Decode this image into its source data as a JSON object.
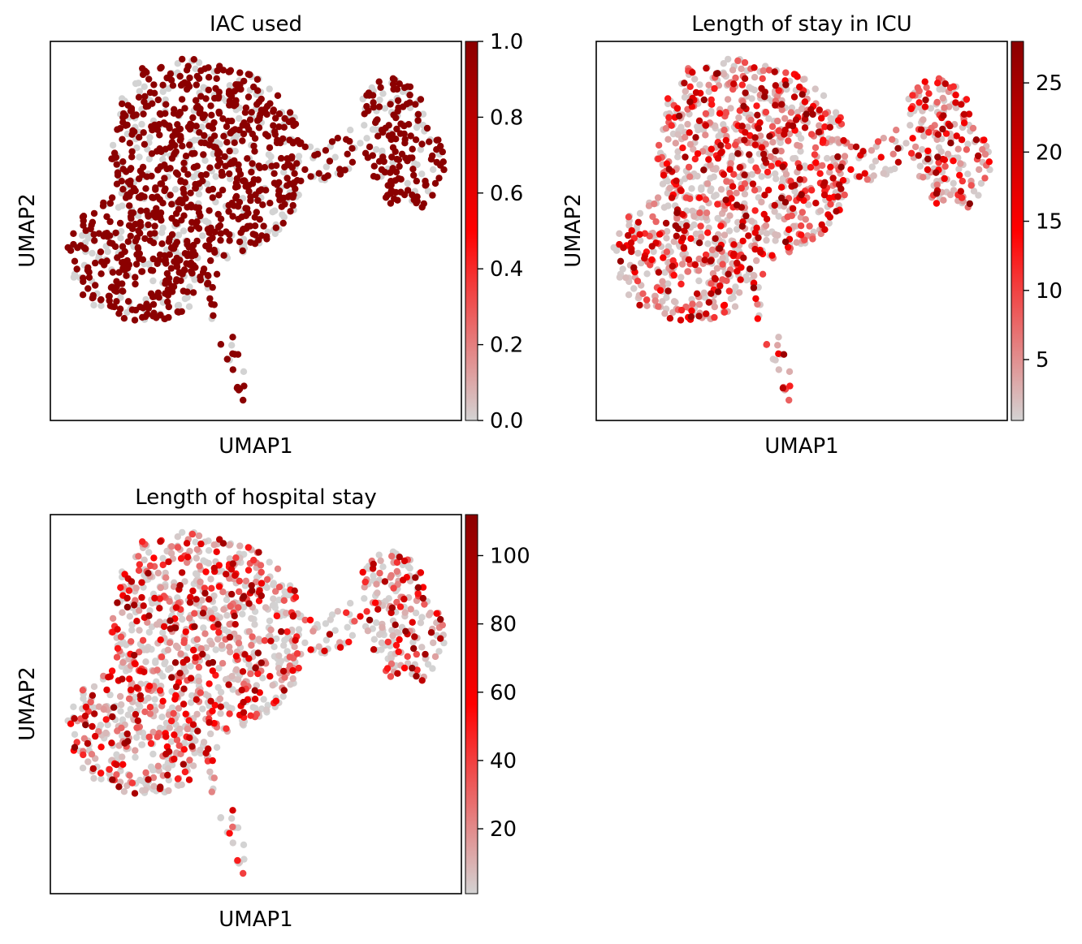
{
  "colors": {
    "low": "#d3d3d3",
    "mid": "#ff0000",
    "high": "#8b0000",
    "frame": "#000000"
  },
  "chart_data": [
    {
      "type": "scatter",
      "title": "IAC used",
      "xlabel": "UMAP1",
      "ylabel": "UMAP2",
      "color_scale": {
        "min": 0.0,
        "max": 1.0,
        "ticks": [
          "0.0",
          "0.2",
          "0.4",
          "0.6",
          "0.8",
          "1.0"
        ],
        "tick_values": [
          0.0,
          0.2,
          0.4,
          0.6,
          0.8,
          1.0
        ]
      },
      "value_distribution": "binary (0 or 1), majority 1",
      "grid": false
    },
    {
      "type": "scatter",
      "title": "Length of stay in ICU",
      "xlabel": "UMAP1",
      "ylabel": "UMAP2",
      "color_scale": {
        "min": 0.6,
        "max": 28.0,
        "ticks": [
          "5",
          "10",
          "15",
          "20",
          "25"
        ],
        "tick_values": [
          5,
          10,
          15,
          20,
          25
        ]
      },
      "value_distribution": "continuous, mostly 1-10, few high",
      "grid": false
    },
    {
      "type": "scatter",
      "title": "Length of hospital stay",
      "xlabel": "UMAP1",
      "ylabel": "UMAP2",
      "color_scale": {
        "min": 1.0,
        "max": 112.0,
        "ticks": [
          "20",
          "40",
          "60",
          "80",
          "100"
        ],
        "tick_values": [
          20,
          40,
          60,
          80,
          100
        ]
      },
      "value_distribution": "continuous, mostly 5-30, few high",
      "grid": false
    }
  ]
}
